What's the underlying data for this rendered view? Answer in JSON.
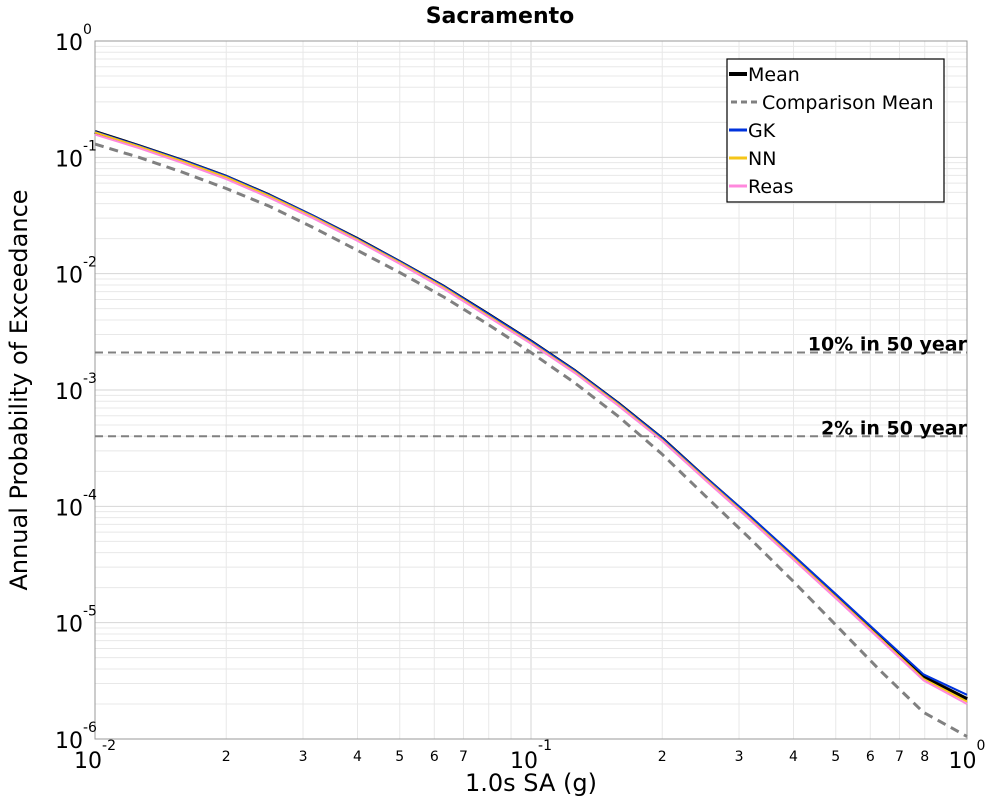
{
  "chart_data": {
    "type": "line",
    "title": "Sacramento",
    "xlabel": "1.0s SA (g)",
    "ylabel": "Annual Probability of Exceedance",
    "xscale": "log",
    "yscale": "log",
    "xlim": [
      0.01,
      1.0
    ],
    "ylim": [
      1e-06,
      1.0
    ],
    "grid": true,
    "legend_position": "top-right",
    "x_major_ticks": [
      {
        "base": "10",
        "exp": "-2",
        "value": 0.01
      },
      {
        "base": "10",
        "exp": "-1",
        "value": 0.1
      },
      {
        "base": "10",
        "exp": "0",
        "value": 1.0
      }
    ],
    "x_minor_ticks": [
      {
        "label": "2",
        "value": 0.02
      },
      {
        "label": "3",
        "value": 0.03
      },
      {
        "label": "4",
        "value": 0.04
      },
      {
        "label": "5",
        "value": 0.05
      },
      {
        "label": "6",
        "value": 0.06
      },
      {
        "label": "7",
        "value": 0.07
      },
      {
        "label": "2",
        "value": 0.2
      },
      {
        "label": "3",
        "value": 0.3
      },
      {
        "label": "4",
        "value": 0.4
      },
      {
        "label": "5",
        "value": 0.5
      },
      {
        "label": "6",
        "value": 0.6
      },
      {
        "label": "7",
        "value": 0.7
      },
      {
        "label": "8",
        "value": 0.8
      }
    ],
    "y_major_ticks": [
      {
        "base": "10",
        "exp": "0",
        "value": 1.0
      },
      {
        "base": "10",
        "exp": "-1",
        "value": 0.1
      },
      {
        "base": "10",
        "exp": "-2",
        "value": 0.01
      },
      {
        "base": "10",
        "exp": "-3",
        "value": 0.001
      },
      {
        "base": "10",
        "exp": "-4",
        "value": 0.0001
      },
      {
        "base": "10",
        "exp": "-5",
        "value": 1e-05
      },
      {
        "base": "10",
        "exp": "-6",
        "value": 1e-06
      }
    ],
    "reference_lines": [
      {
        "label": "10% in 50 year",
        "y": 0.0021,
        "color": "#808080",
        "style": "dashed"
      },
      {
        "label": "2% in 50 year",
        "y": 0.0004,
        "color": "#808080",
        "style": "dashed"
      }
    ],
    "x": [
      0.01,
      0.0126,
      0.0158,
      0.02,
      0.0251,
      0.0316,
      0.0398,
      0.0501,
      0.0631,
      0.0794,
      0.1,
      0.126,
      0.158,
      0.2,
      0.251,
      0.316,
      0.398,
      0.501,
      0.631,
      0.794,
      1.0
    ],
    "series": [
      {
        "name": "Mean",
        "color": "#000000",
        "style": "solid",
        "width": 4,
        "values": [
          0.165,
          0.125,
          0.094,
          0.068,
          0.047,
          0.031,
          0.02,
          0.0125,
          0.0077,
          0.0045,
          0.0026,
          0.00145,
          0.00077,
          0.00038,
          0.000175,
          8.2e-05,
          3.75e-05,
          1.7e-05,
          7.6e-06,
          3.4e-06,
          2.2e-06
        ]
      },
      {
        "name": "Comparison Mean",
        "color": "#808080",
        "style": "dashed",
        "width": 3,
        "values": [
          0.13,
          0.1,
          0.075,
          0.054,
          0.038,
          0.025,
          0.016,
          0.0102,
          0.0063,
          0.0037,
          0.0021,
          0.00115,
          0.0006,
          0.00028,
          0.000123,
          5.4e-05,
          2.3e-05,
          9.5e-06,
          3.9e-06,
          1.7e-06,
          1.05e-06
        ]
      },
      {
        "name": "GK",
        "color": "#0033dd",
        "style": "solid",
        "width": 2,
        "values": [
          0.166,
          0.126,
          0.095,
          0.069,
          0.0475,
          0.0315,
          0.0202,
          0.0127,
          0.0078,
          0.00455,
          0.00263,
          0.00147,
          0.00078,
          0.000385,
          0.000178,
          8.4e-05,
          3.85e-05,
          1.75e-05,
          7.9e-06,
          3.6e-06,
          2.4e-06
        ]
      },
      {
        "name": "NN",
        "color": "#f5c518",
        "style": "solid",
        "width": 2,
        "values": [
          0.164,
          0.124,
          0.093,
          0.0675,
          0.0466,
          0.0308,
          0.0198,
          0.0124,
          0.0076,
          0.0044,
          0.00255,
          0.00143,
          0.00076,
          0.000372,
          0.000172,
          8e-05,
          3.65e-05,
          1.65e-05,
          7.4e-06,
          3.3e-06,
          2.1e-06
        ]
      },
      {
        "name": "Reas",
        "color": "#ff88dd",
        "style": "solid",
        "width": 2,
        "values": [
          0.157,
          0.12,
          0.09,
          0.065,
          0.045,
          0.03,
          0.0193,
          0.0121,
          0.0074,
          0.0043,
          0.0025,
          0.0014,
          0.00074,
          0.000365,
          0.000168,
          7.8e-05,
          3.55e-05,
          1.61e-05,
          7.2e-06,
          3.2e-06,
          2e-06
        ]
      }
    ]
  }
}
